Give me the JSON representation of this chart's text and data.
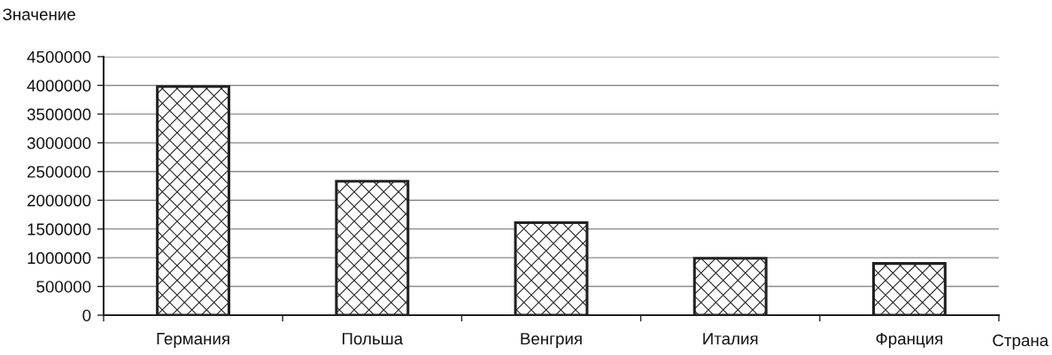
{
  "chart_data": {
    "type": "bar",
    "xlabel": "Страна",
    "ylabel": "Значение",
    "categories": [
      "Германия",
      "Польша",
      "Венгрия",
      "Италия",
      "Франция"
    ],
    "values": [
      3980000,
      2330000,
      1610000,
      990000,
      900000
    ],
    "color": "#222222",
    "ylim": [
      0,
      4500000
    ],
    "yticks": [
      0,
      500000,
      1000000,
      1500000,
      2000000,
      2500000,
      3000000,
      3500000,
      4000000,
      4500000
    ],
    "grid": "y"
  }
}
